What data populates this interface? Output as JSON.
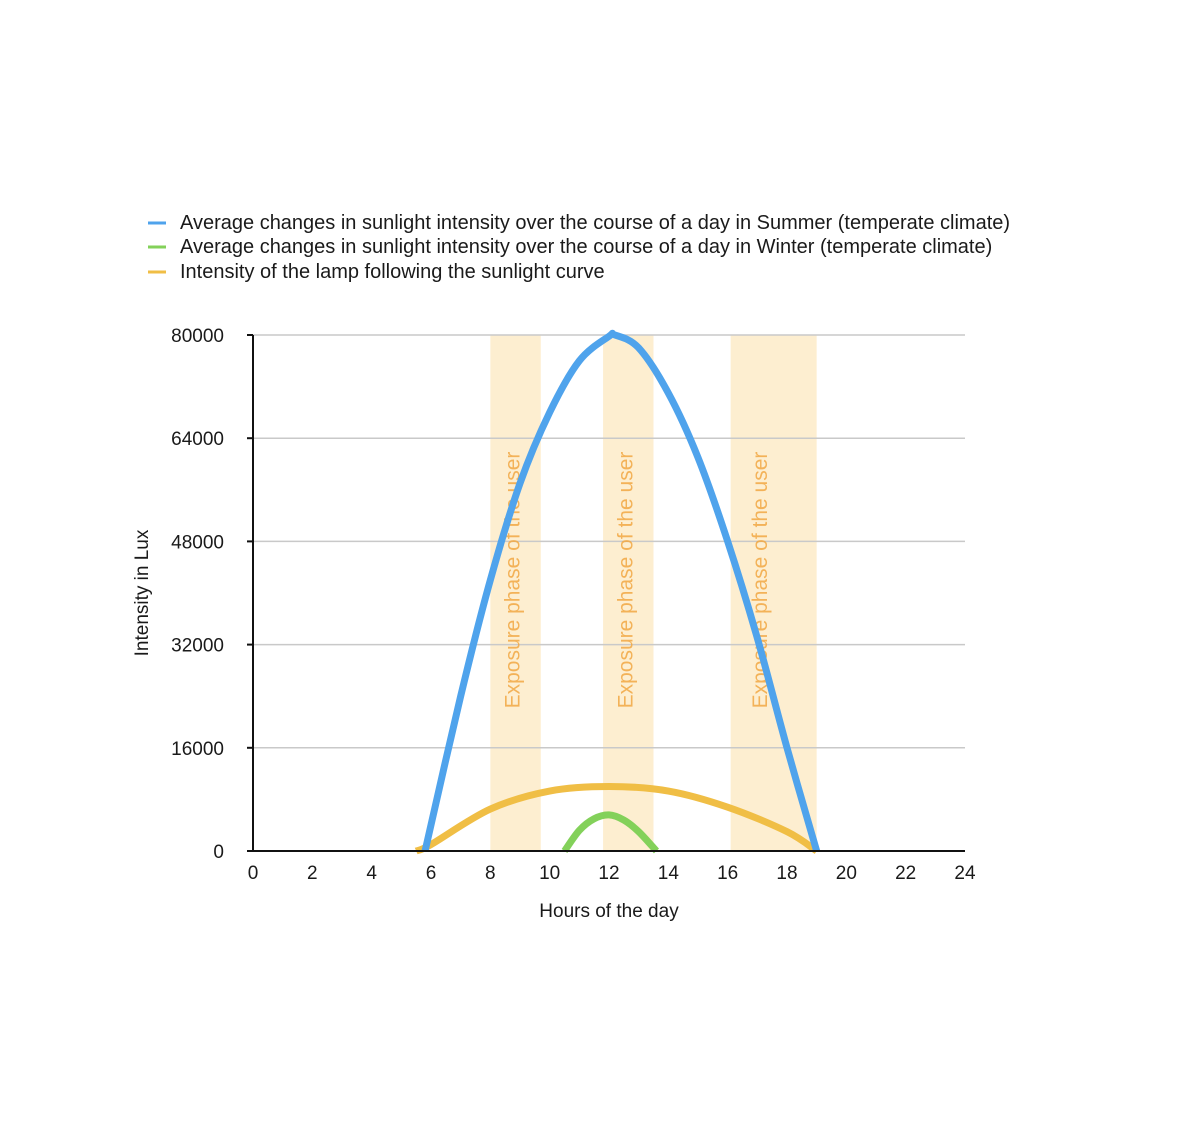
{
  "chart_data": {
    "type": "line",
    "title": "",
    "xlabel": "Hours of the day",
    "ylabel": "Intensity in Lux",
    "xlim": [
      0,
      24
    ],
    "ylim": [
      0,
      80000
    ],
    "x_ticks": [
      "0",
      "2",
      "4",
      "6",
      "8",
      "10",
      "12",
      "14",
      "16",
      "18",
      "20",
      "22",
      "24"
    ],
    "y_ticks": [
      "0",
      "16000",
      "32000",
      "48000",
      "64000",
      "80000"
    ],
    "grid": "horizontal",
    "legend_position": "top-left",
    "series": [
      {
        "name": "Average changes in sunlight intensity over the course of a day in Summer (temperate climate)",
        "color": "#4fa3ec",
        "x": [
          5.8,
          7,
          8,
          9,
          10,
          11,
          12,
          12.2,
          13,
          14,
          15,
          16,
          17,
          18,
          19
        ],
        "y": [
          0,
          24000,
          42000,
          57000,
          68000,
          76000,
          79800,
          80000,
          78000,
          71000,
          61000,
          48000,
          33000,
          16000,
          0
        ]
      },
      {
        "name": "Average changes in sunlight intensity over the course of a day in Winter (temperate climate)",
        "color": "#83d15a",
        "x": [
          10.5,
          11,
          11.5,
          12,
          12.5,
          13,
          13.6
        ],
        "y": [
          0,
          3200,
          5000,
          5600,
          4800,
          3000,
          0
        ]
      },
      {
        "name": "Intensity of the lamp following the sunlight curve",
        "color": "#f0be45",
        "x": [
          5.5,
          6,
          8,
          10,
          12,
          14,
          16,
          18,
          19
        ],
        "y": [
          0,
          1000,
          6500,
          9300,
          10000,
          9300,
          6800,
          3000,
          0
        ]
      }
    ],
    "bands": [
      {
        "x0": 8,
        "x1": 9.7,
        "label": "Exposure phase of the user"
      },
      {
        "x0": 11.8,
        "x1": 13.5,
        "label": "Exposure phase of the user"
      },
      {
        "x0": 16.1,
        "x1": 19,
        "label": "Exposure phase of the user"
      }
    ]
  }
}
